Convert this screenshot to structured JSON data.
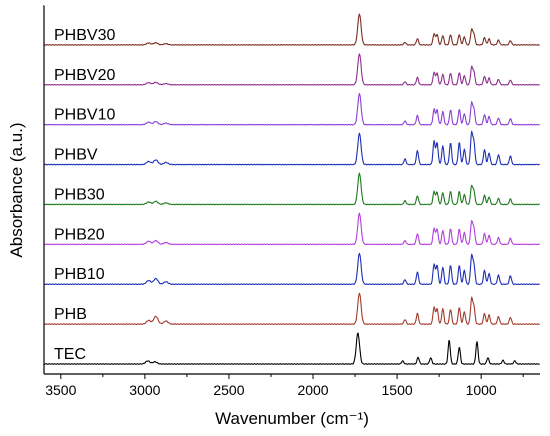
{
  "chart_data": {
    "type": "line",
    "xlabel": "Wavenumber (cm⁻¹)",
    "ylabel": "Absorbance (a.u.)",
    "xlim": [
      3600,
      650
    ],
    "x_reversed": true,
    "xticks": [
      3500,
      3000,
      2500,
      2000,
      1500,
      1000
    ],
    "xtick_labels": [
      "3500",
      "3000",
      "2500",
      "2000",
      "1500",
      "1000"
    ],
    "y_tick_labels_shown": false,
    "series": [
      {
        "name": "TEC",
        "color": "#000000",
        "peaks": [
          [
            2983,
            0.1
          ],
          [
            2940,
            0.07
          ],
          [
            1733,
            1.0
          ],
          [
            1467,
            0.1
          ],
          [
            1375,
            0.22
          ],
          [
            1300,
            0.2
          ],
          [
            1190,
            0.78
          ],
          [
            1130,
            0.55
          ],
          [
            1025,
            0.72
          ],
          [
            960,
            0.2
          ],
          [
            870,
            0.12
          ],
          [
            800,
            0.1
          ]
        ]
      },
      {
        "name": "PHB",
        "color": "#a23b2c",
        "peaks": [
          [
            2978,
            0.12
          ],
          [
            2935,
            0.25
          ],
          [
            2875,
            0.1
          ],
          [
            1724,
            1.0
          ],
          [
            1453,
            0.15
          ],
          [
            1379,
            0.35
          ],
          [
            1280,
            0.55
          ],
          [
            1262,
            0.5
          ],
          [
            1228,
            0.5
          ],
          [
            1182,
            0.48
          ],
          [
            1130,
            0.55
          ],
          [
            1100,
            0.4
          ],
          [
            1057,
            0.8
          ],
          [
            1043,
            0.55
          ],
          [
            980,
            0.35
          ],
          [
            953,
            0.3
          ],
          [
            897,
            0.25
          ],
          [
            826,
            0.22
          ]
        ]
      },
      {
        "name": "PHB10",
        "color": "#1d2fb5",
        "peaks": [
          [
            2978,
            0.12
          ],
          [
            2935,
            0.18
          ],
          [
            2875,
            0.08
          ],
          [
            1724,
            1.0
          ],
          [
            1453,
            0.15
          ],
          [
            1379,
            0.4
          ],
          [
            1280,
            0.65
          ],
          [
            1262,
            0.62
          ],
          [
            1228,
            0.55
          ],
          [
            1182,
            0.62
          ],
          [
            1130,
            0.62
          ],
          [
            1100,
            0.45
          ],
          [
            1057,
            0.9
          ],
          [
            1043,
            0.62
          ],
          [
            980,
            0.45
          ],
          [
            953,
            0.35
          ],
          [
            897,
            0.3
          ],
          [
            826,
            0.28
          ]
        ]
      },
      {
        "name": "PHB20",
        "color": "#b23fdc",
        "peaks": [
          [
            2978,
            0.1
          ],
          [
            2935,
            0.12
          ],
          [
            2875,
            0.06
          ],
          [
            1724,
            1.0
          ],
          [
            1453,
            0.12
          ],
          [
            1379,
            0.35
          ],
          [
            1280,
            0.52
          ],
          [
            1262,
            0.5
          ],
          [
            1228,
            0.45
          ],
          [
            1182,
            0.5
          ],
          [
            1130,
            0.5
          ],
          [
            1100,
            0.38
          ],
          [
            1057,
            0.72
          ],
          [
            1043,
            0.5
          ],
          [
            980,
            0.35
          ],
          [
            953,
            0.3
          ],
          [
            897,
            0.22
          ],
          [
            826,
            0.2
          ]
        ]
      },
      {
        "name": "PHB30",
        "color": "#1f7a1f",
        "peaks": [
          [
            2978,
            0.08
          ],
          [
            2935,
            0.1
          ],
          [
            2875,
            0.05
          ],
          [
            1724,
            1.0
          ],
          [
            1453,
            0.12
          ],
          [
            1379,
            0.28
          ],
          [
            1280,
            0.42
          ],
          [
            1262,
            0.4
          ],
          [
            1228,
            0.38
          ],
          [
            1182,
            0.42
          ],
          [
            1130,
            0.42
          ],
          [
            1100,
            0.32
          ],
          [
            1057,
            0.58
          ],
          [
            1043,
            0.42
          ],
          [
            980,
            0.3
          ],
          [
            953,
            0.25
          ],
          [
            897,
            0.2
          ],
          [
            826,
            0.18
          ]
        ]
      },
      {
        "name": "PHBV",
        "color": "#1d2fb5",
        "peaks": [
          [
            2978,
            0.1
          ],
          [
            2935,
            0.15
          ],
          [
            2875,
            0.07
          ],
          [
            1724,
            1.0
          ],
          [
            1453,
            0.18
          ],
          [
            1379,
            0.45
          ],
          [
            1280,
            0.75
          ],
          [
            1262,
            0.7
          ],
          [
            1228,
            0.6
          ],
          [
            1182,
            0.7
          ],
          [
            1130,
            0.72
          ],
          [
            1100,
            0.5
          ],
          [
            1057,
            1.0
          ],
          [
            1043,
            0.7
          ],
          [
            980,
            0.48
          ],
          [
            953,
            0.38
          ],
          [
            897,
            0.32
          ],
          [
            826,
            0.28
          ]
        ]
      },
      {
        "name": "PHBV10",
        "color": "#8a3fd6",
        "peaks": [
          [
            2978,
            0.08
          ],
          [
            2935,
            0.1
          ],
          [
            2875,
            0.05
          ],
          [
            1724,
            1.0
          ],
          [
            1453,
            0.12
          ],
          [
            1379,
            0.3
          ],
          [
            1280,
            0.5
          ],
          [
            1262,
            0.48
          ],
          [
            1228,
            0.42
          ],
          [
            1182,
            0.48
          ],
          [
            1130,
            0.5
          ],
          [
            1100,
            0.36
          ],
          [
            1057,
            0.68
          ],
          [
            1043,
            0.48
          ],
          [
            980,
            0.33
          ],
          [
            953,
            0.27
          ],
          [
            897,
            0.22
          ],
          [
            826,
            0.2
          ]
        ]
      },
      {
        "name": "PHBV20",
        "color": "#8e2f8e",
        "peaks": [
          [
            2978,
            0.07
          ],
          [
            2935,
            0.08
          ],
          [
            2875,
            0.04
          ],
          [
            1724,
            1.0
          ],
          [
            1453,
            0.1
          ],
          [
            1379,
            0.24
          ],
          [
            1280,
            0.4
          ],
          [
            1262,
            0.38
          ],
          [
            1228,
            0.34
          ],
          [
            1182,
            0.38
          ],
          [
            1130,
            0.4
          ],
          [
            1100,
            0.3
          ],
          [
            1057,
            0.55
          ],
          [
            1043,
            0.4
          ],
          [
            980,
            0.28
          ],
          [
            953,
            0.22
          ],
          [
            897,
            0.18
          ],
          [
            826,
            0.16
          ]
        ]
      },
      {
        "name": "PHBV30",
        "color": "#7a2e22",
        "peaks": [
          [
            2978,
            0.06
          ],
          [
            2935,
            0.07
          ],
          [
            2875,
            0.04
          ],
          [
            1724,
            1.0
          ],
          [
            1453,
            0.08
          ],
          [
            1379,
            0.2
          ],
          [
            1280,
            0.36
          ],
          [
            1262,
            0.34
          ],
          [
            1228,
            0.3
          ],
          [
            1182,
            0.33
          ],
          [
            1130,
            0.34
          ],
          [
            1100,
            0.26
          ],
          [
            1057,
            0.48
          ],
          [
            1043,
            0.34
          ],
          [
            980,
            0.24
          ],
          [
            953,
            0.2
          ],
          [
            897,
            0.16
          ],
          [
            826,
            0.14
          ]
        ]
      }
    ]
  }
}
